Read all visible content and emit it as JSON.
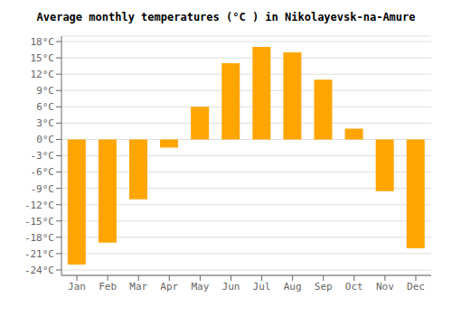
{
  "chart_data": {
    "type": "bar",
    "title": "Average monthly temperatures (°C ) in Nikolayevsk-na-Amure",
    "categories": [
      "Jan",
      "Feb",
      "Mar",
      "Apr",
      "May",
      "Jun",
      "Jul",
      "Aug",
      "Sep",
      "Oct",
      "Nov",
      "Dec"
    ],
    "values": [
      -23,
      -19,
      -11,
      -1.5,
      6,
      14,
      17,
      16,
      11,
      2,
      -9.5,
      -20
    ],
    "color": "#FFA500",
    "ylim": [
      -25,
      19
    ],
    "yticks": [
      {
        "value": -24,
        "label": "-24°C"
      },
      {
        "value": -21,
        "label": "-21°C"
      },
      {
        "value": -18,
        "label": "-18°C"
      },
      {
        "value": -15,
        "label": "-15°C"
      },
      {
        "value": -12,
        "label": "-12°C"
      },
      {
        "value": -9,
        "label": "-9°C"
      },
      {
        "value": -6,
        "label": "-6°C"
      },
      {
        "value": -3,
        "label": "-3°C"
      },
      {
        "value": 0,
        "label": "0°C"
      },
      {
        "value": 3,
        "label": "3°C"
      },
      {
        "value": 6,
        "label": "6°C"
      },
      {
        "value": 9,
        "label": "9°C"
      },
      {
        "value": 12,
        "label": "12°C"
      },
      {
        "value": 15,
        "label": "15°C"
      },
      {
        "value": 18,
        "label": "18°C"
      }
    ],
    "grid": true
  }
}
